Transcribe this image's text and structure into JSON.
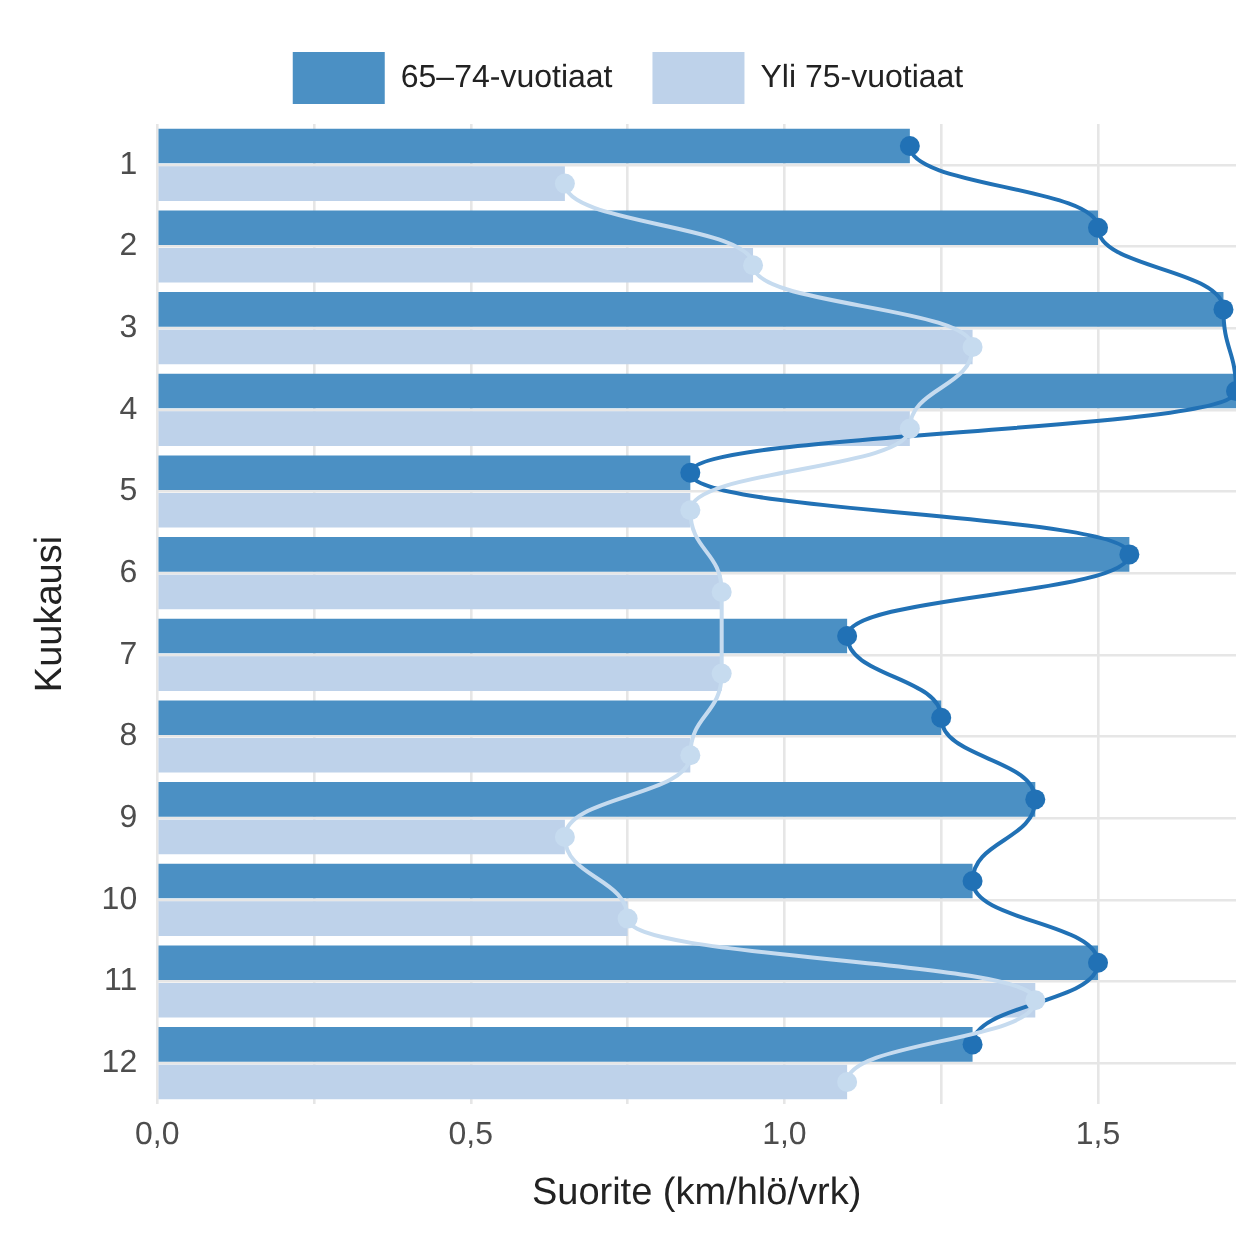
{
  "chart_data": {
    "type": "bar",
    "orientation": "horizontal",
    "xlabel": "Suorite (km/hlö/vrk)",
    "ylabel": "Kuukausi",
    "categories": [
      "1",
      "2",
      "3",
      "4",
      "5",
      "6",
      "7",
      "8",
      "9",
      "10",
      "11",
      "12"
    ],
    "series": [
      {
        "name": "65–74-vuotiaat",
        "color": "#4b90c4",
        "values": [
          1.2,
          1.5,
          1.7,
          1.72,
          0.85,
          1.55,
          1.1,
          1.25,
          1.4,
          1.3,
          1.5,
          1.3
        ]
      },
      {
        "name": "Yli 75-vuotiaat",
        "color": "#bed2ea",
        "values": [
          0.65,
          0.95,
          1.3,
          1.2,
          0.85,
          0.9,
          0.9,
          0.85,
          0.65,
          0.75,
          1.4,
          1.1
        ]
      },
      {
        "type": "line",
        "color": "#2171b5",
        "marker": "circle",
        "values": [
          1.2,
          1.5,
          1.7,
          1.72,
          0.85,
          1.55,
          1.1,
          1.25,
          1.4,
          1.3,
          1.5,
          1.3
        ]
      },
      {
        "type": "line",
        "color": "#c6dbef",
        "marker": "circle",
        "values": [
          0.65,
          0.95,
          1.3,
          1.2,
          0.85,
          0.9,
          0.9,
          0.85,
          0.65,
          0.75,
          1.4,
          1.1
        ]
      }
    ],
    "xlim": [
      0,
      1.72
    ],
    "xticks": [
      {
        "value": 0,
        "label": "0,0"
      },
      {
        "value": 0.25,
        "label": null
      },
      {
        "value": 0.5,
        "label": "0,5"
      },
      {
        "value": 0.75,
        "label": null
      },
      {
        "value": 1,
        "label": "1,0"
      },
      {
        "value": 1.25,
        "label": null
      },
      {
        "value": 1.5,
        "label": "1,5"
      }
    ],
    "grid": true,
    "legend": "top"
  }
}
